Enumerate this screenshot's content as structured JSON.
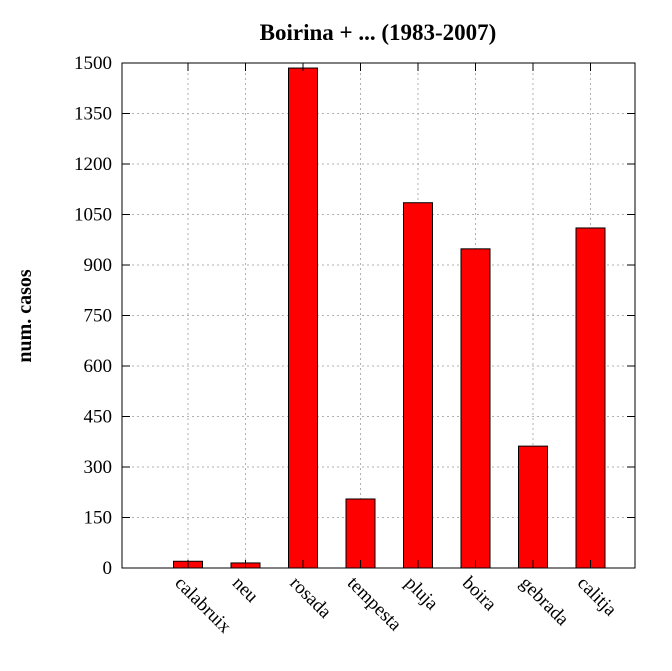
{
  "chart_data": {
    "type": "bar",
    "title": "Boirina + ... (1983-2007)",
    "xlabel": "",
    "ylabel": "num. casos",
    "ylim": [
      0,
      1500
    ],
    "yticks": [
      "0",
      "150",
      "300",
      "450",
      "600",
      "750",
      "900",
      "1050",
      "1200",
      "1350",
      "1500"
    ],
    "categories": [
      "calabruix",
      "neu",
      "rosada",
      "tempesta",
      "pluja",
      "boira",
      "gebrada",
      "calitja"
    ],
    "values": [
      20,
      15,
      1485,
      205,
      1085,
      948,
      362,
      1010
    ],
    "grid": true,
    "legend": "none",
    "bar_color": "#ff0000",
    "bar_edge_color": "#000000"
  }
}
